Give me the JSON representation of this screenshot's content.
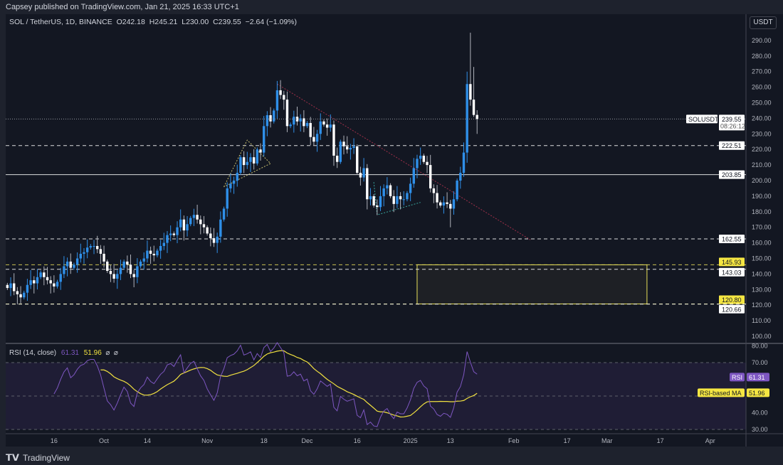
{
  "publisher_line": "Capsey published on TradingView.com, Jan 21, 2025 16:33 UTC+1",
  "legend": {
    "symbol": "SOL / TetherUS, 1D, BINANCE",
    "open": "O242.18",
    "high": "H245.21",
    "low": "L230.00",
    "close": "C239.55",
    "change": "−2.64 (−1.09%)"
  },
  "currency_button": "USDT",
  "brand": "TradingView",
  "colors": {
    "up": "#2f8fe8",
    "down": "#ffffff",
    "background": "#131722",
    "rsi": "#7e57c2",
    "rsi_ma": "#f0e040",
    "zone": "#e8e05a",
    "trendline": "#a0304a"
  },
  "chart_data": {
    "type": "candlestick",
    "date_range": [
      "2024-09-02",
      "2025-01-21"
    ],
    "closes": [
      131,
      134,
      129,
      127,
      125,
      128,
      133,
      136,
      134,
      138,
      141,
      138,
      136,
      134,
      132,
      135,
      140,
      145,
      148,
      144,
      146,
      150,
      153,
      154,
      157,
      158,
      158,
      156,
      153,
      148,
      142,
      140,
      137,
      140,
      144,
      148,
      146,
      140,
      138,
      145,
      148,
      150,
      155,
      153,
      152,
      155,
      158,
      160,
      165,
      166,
      165,
      170,
      175,
      168,
      172,
      176,
      178,
      175,
      172,
      170,
      166,
      163,
      160,
      164,
      175,
      182,
      195,
      198,
      200,
      205,
      215,
      210,
      212,
      215,
      211,
      220,
      218,
      235,
      242,
      238,
      245,
      258,
      255,
      252,
      235,
      236,
      241,
      238,
      240,
      235,
      237,
      228,
      225,
      230,
      238,
      236,
      234,
      236,
      216,
      212,
      225,
      222,
      220,
      221,
      222,
      205,
      202,
      208,
      188,
      190,
      184,
      183,
      190,
      195,
      197,
      190,
      185,
      190,
      188,
      188,
      192,
      198,
      208,
      214,
      216,
      212,
      210,
      195,
      192,
      186,
      184,
      186,
      185,
      182,
      188,
      200,
      205,
      218,
      262,
      252,
      242.18,
      239.55
    ],
    "high_overrides": {
      "2025-01-18": 270,
      "2025-01-19": 295,
      "2025-01-20": 273,
      "2025-01-21": 245.21,
      "2024-11-22": 264
    },
    "low_overrides": {
      "2025-01-13": 170,
      "2025-01-21": 230
    },
    "price_axis": {
      "min": 100,
      "max": 290,
      "step": 10,
      "labels": [
        "100.00",
        "110.00",
        "120.00",
        "130.00",
        "140.00",
        "150.00",
        "160.00",
        "170.00",
        "180.00",
        "190.00",
        "200.00",
        "210.00",
        "220.00",
        "230.00",
        "240.00",
        "250.00",
        "260.00",
        "270.00",
        "280.00",
        "290.00"
      ]
    },
    "time_axis": [
      "16",
      "Oct",
      "14",
      "Nov",
      "18",
      "Dec",
      "16",
      "2025",
      "13",
      "Feb",
      "17",
      "Mar",
      "17",
      "Apr"
    ],
    "time_axis_dates": [
      "2024-09-16",
      "2024-10-01",
      "2024-10-14",
      "2024-11-01",
      "2024-11-18",
      "2024-12-01",
      "2024-12-16",
      "2025-01-01",
      "2025-01-13",
      "2025-02-01",
      "2025-02-17",
      "2025-03-01",
      "2025-03-17",
      "2025-04-01"
    ],
    "current_price": {
      "symbol": "SOLUSDT",
      "price": "239.55",
      "countdown": "08:26:12",
      "value": 239.55
    },
    "levels": [
      {
        "value": 222.51,
        "label": "222.51",
        "style": "dashed",
        "color": "#ffffff"
      },
      {
        "value": 203.85,
        "label": "203.85",
        "style": "solid",
        "color": "#ffffff"
      },
      {
        "value": 162.55,
        "label": "162.55",
        "style": "dashed",
        "color": "#ffffff"
      },
      {
        "value": 145.93,
        "label": "145.93",
        "style": "dashed",
        "color": "#e8e05a"
      },
      {
        "value": 143.03,
        "label": "143.03",
        "style": "dashed",
        "color": "#ffffff"
      },
      {
        "value": 120.8,
        "label": "120.80",
        "style": "dashed",
        "color": "#e8e05a"
      },
      {
        "value": 120.66,
        "label": "120.66",
        "style": "dashed",
        "color": "#ffffff"
      }
    ],
    "zone": {
      "from_date": "2025-01-03",
      "to_date": "2025-03-13",
      "top": 145.93,
      "bottom": 120.8
    },
    "trendline": {
      "from": [
        "2024-11-22",
        262
      ],
      "to": [
        "2025-02-06",
        162
      ]
    },
    "rsi": {
      "title": "RSI (14, close)",
      "value": "61.31",
      "ma_value": "51.96",
      "period": 14,
      "ma_period": 14,
      "axis": {
        "min": 30,
        "max": 80,
        "labels": [
          "30.00",
          "40.00",
          "70.00",
          "80.00"
        ]
      },
      "band": [
        30,
        70
      ],
      "tag_rsi": "RSI",
      "tag_ma": "RSI-based MA",
      "icons": [
        "hidden-icon",
        "hidden-icon"
      ]
    }
  }
}
